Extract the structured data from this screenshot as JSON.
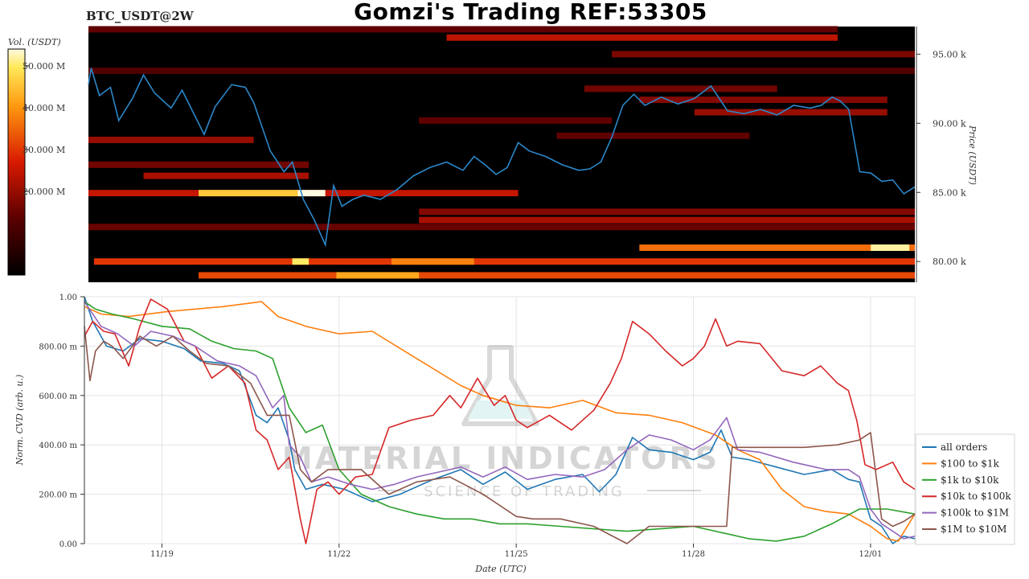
{
  "header": {
    "symbol": "BTC_USDT@2W",
    "title": "Gomzi's Trading REF:53305"
  },
  "watermark": {
    "brand": "MATERIAL INDICATORS",
    "tagline": "SCIENCE OF TRADING"
  },
  "colors": {
    "heatmap_bg": "#000000",
    "price_line": "#2b87c8",
    "grid": "#e4e4e4"
  },
  "chart_data": [
    {
      "type": "heatmap",
      "title": "",
      "colorbar": {
        "label": "Vol. (USDT)",
        "ticks": [
          "50.000 M",
          "40.000 M",
          "30.000 M",
          "20.000 M"
        ],
        "tick_values": [
          50000000,
          40000000,
          30000000,
          20000000
        ],
        "range": [
          0,
          54000000
        ],
        "colormap": "black-red-orange-yellow-white"
      },
      "yaxis": {
        "label": "Price (USDT)",
        "side": "right",
        "ticks": [
          "95.00 k",
          "90.00 k",
          "85.00 k",
          "80.00 k"
        ],
        "tick_values": [
          95000,
          90000,
          85000,
          80000
        ],
        "range": [
          78500,
          97000
        ]
      },
      "xaxis": {
        "range_days": [
          0,
          15
        ]
      },
      "bands": [
        {
          "price": 84950,
          "from": 0.0,
          "to": 7.8,
          "vol": 25000000
        },
        {
          "price": 84950,
          "from": 2.0,
          "to": 3.8,
          "vol": 46000000
        },
        {
          "price": 84950,
          "from": 3.8,
          "to": 4.3,
          "vol": 54000000
        },
        {
          "price": 80000,
          "from": 0.1,
          "to": 15.0,
          "vol": 30000000
        },
        {
          "price": 80000,
          "from": 3.7,
          "to": 4.0,
          "vol": 50000000
        },
        {
          "price": 80000,
          "from": 5.5,
          "to": 7.0,
          "vol": 38000000
        },
        {
          "price": 79000,
          "from": 2.0,
          "to": 15.0,
          "vol": 32000000
        },
        {
          "price": 79000,
          "from": 4.5,
          "to": 6.0,
          "vol": 42000000
        },
        {
          "price": 81000,
          "from": 10.0,
          "to": 15.0,
          "vol": 36000000
        },
        {
          "price": 81000,
          "from": 14.2,
          "to": 14.9,
          "vol": 52000000
        },
        {
          "price": 83000,
          "from": 6.0,
          "to": 15.0,
          "vol": 22000000
        },
        {
          "price": 83600,
          "from": 6.0,
          "to": 15.0,
          "vol": 18000000
        },
        {
          "price": 82500,
          "from": 0.0,
          "to": 15.0,
          "vol": 15000000
        },
        {
          "price": 96200,
          "from": 6.5,
          "to": 13.6,
          "vol": 24000000
        },
        {
          "price": 96800,
          "from": 0.0,
          "to": 13.6,
          "vol": 14000000
        },
        {
          "price": 95000,
          "from": 9.5,
          "to": 15.0,
          "vol": 17000000
        },
        {
          "price": 93800,
          "from": 0.0,
          "to": 15.0,
          "vol": 12000000
        },
        {
          "price": 88800,
          "from": 0.0,
          "to": 3.0,
          "vol": 20000000
        },
        {
          "price": 87000,
          "from": 0.0,
          "to": 4.0,
          "vol": 16000000
        },
        {
          "price": 86200,
          "from": 1.0,
          "to": 4.0,
          "vol": 22000000
        },
        {
          "price": 91700,
          "from": 10.0,
          "to": 14.5,
          "vol": 18000000
        },
        {
          "price": 90800,
          "from": 11.0,
          "to": 14.5,
          "vol": 20000000
        },
        {
          "price": 90200,
          "from": 6.0,
          "to": 9.5,
          "vol": 14000000
        },
        {
          "price": 89100,
          "from": 8.5,
          "to": 12.0,
          "vol": 14000000
        },
        {
          "price": 92500,
          "from": 9.0,
          "to": 12.5,
          "vol": 16000000
        }
      ],
      "price_series": {
        "x_days": [
          0.0,
          0.05,
          0.2,
          0.4,
          0.55,
          0.8,
          1.0,
          1.2,
          1.5,
          1.7,
          1.9,
          2.1,
          2.3,
          2.6,
          2.85,
          3.0,
          3.3,
          3.55,
          3.7,
          3.9,
          4.1,
          4.3,
          4.45,
          4.6,
          4.8,
          5.0,
          5.3,
          5.6,
          5.9,
          6.2,
          6.5,
          6.8,
          7.0,
          7.2,
          7.4,
          7.6,
          7.8,
          8.0,
          8.3,
          8.6,
          8.9,
          9.1,
          9.3,
          9.5,
          9.7,
          9.9,
          10.1,
          10.4,
          10.7,
          11.0,
          11.3,
          11.6,
          11.9,
          12.2,
          12.5,
          12.8,
          13.1,
          13.3,
          13.5,
          13.65,
          13.8,
          14.0,
          14.2,
          14.4,
          14.6,
          14.8,
          15.0
        ],
        "y_price": [
          92800,
          94000,
          92000,
          92600,
          90200,
          91800,
          93500,
          92200,
          91100,
          92400,
          90800,
          89200,
          91200,
          92800,
          92600,
          91500,
          88000,
          86500,
          87200,
          84500,
          83000,
          81200,
          85500,
          84000,
          84500,
          84800,
          84500,
          85200,
          86200,
          86800,
          87200,
          86600,
          87600,
          87000,
          86300,
          86800,
          88600,
          88000,
          87600,
          87000,
          86600,
          86700,
          87200,
          89000,
          91300,
          92100,
          91300,
          91900,
          91400,
          91800,
          92700,
          90900,
          90700,
          91000,
          90600,
          91300,
          91100,
          91300,
          91900,
          91600,
          91000,
          86500,
          86400,
          85800,
          85900,
          84900,
          85400
        ]
      }
    },
    {
      "type": "line",
      "title": "",
      "xlabel": "Date (UTC)",
      "ylabel": "Norm. CVD (arb. u.)",
      "ylim": [
        0,
        1
      ],
      "xlim_days": [
        0,
        15
      ],
      "yticks": [
        "0.00",
        "200.00 m",
        "400.00 m",
        "600.00 m",
        "800.00 m",
        "1.00"
      ],
      "ytick_values": [
        0,
        0.2,
        0.4,
        0.6,
        0.8,
        1.0
      ],
      "xticks": [
        "11/19",
        "11/22",
        "11/25",
        "11/28",
        "12/01"
      ],
      "xtick_days": [
        1.4,
        4.6,
        7.8,
        11.0,
        14.2
      ],
      "legend": {
        "position": "right"
      },
      "series": [
        {
          "name": "all orders",
          "color": "#1f77b4",
          "x": [
            0,
            0.15,
            0.4,
            0.7,
            1.0,
            1.4,
            1.8,
            2.1,
            2.5,
            2.8,
            3.1,
            3.3,
            3.5,
            3.7,
            3.8,
            4.0,
            4.3,
            4.7,
            5.2,
            5.7,
            6.3,
            6.8,
            7.2,
            7.6,
            8.0,
            8.5,
            9.0,
            9.3,
            9.6,
            9.9,
            10.2,
            10.6,
            11.0,
            11.3,
            11.5,
            11.7,
            12.0,
            12.5,
            13.0,
            13.5,
            13.8,
            14.0,
            14.2,
            14.4,
            14.6,
            14.8,
            15.0
          ],
          "y": [
            1.0,
            0.9,
            0.8,
            0.78,
            0.83,
            0.82,
            0.79,
            0.74,
            0.73,
            0.7,
            0.52,
            0.49,
            0.55,
            0.42,
            0.3,
            0.22,
            0.24,
            0.22,
            0.17,
            0.2,
            0.26,
            0.3,
            0.24,
            0.29,
            0.22,
            0.26,
            0.28,
            0.21,
            0.28,
            0.43,
            0.38,
            0.37,
            0.34,
            0.37,
            0.46,
            0.35,
            0.34,
            0.31,
            0.28,
            0.3,
            0.26,
            0.25,
            0.1,
            0.07,
            0.0,
            0.03,
            0.02
          ]
        },
        {
          "name": "$100 to $1k",
          "color": "#ff7f0e",
          "x": [
            0,
            0.3,
            0.8,
            1.5,
            2.5,
            3.2,
            3.5,
            4.0,
            4.6,
            5.2,
            6.0,
            6.8,
            7.2,
            7.8,
            8.4,
            9.0,
            9.6,
            10.2,
            10.8,
            11.4,
            11.8,
            12.2,
            12.6,
            13.0,
            13.4,
            13.8,
            14.2,
            14.5,
            14.7,
            15.0
          ],
          "y": [
            0.96,
            0.93,
            0.92,
            0.94,
            0.96,
            0.98,
            0.92,
            0.88,
            0.85,
            0.86,
            0.75,
            0.64,
            0.6,
            0.56,
            0.55,
            0.58,
            0.53,
            0.52,
            0.49,
            0.44,
            0.38,
            0.34,
            0.22,
            0.15,
            0.13,
            0.12,
            0.07,
            0.02,
            0.01,
            0.12
          ]
        },
        {
          "name": "$1k to $10k",
          "color": "#2ca02c",
          "x": [
            0,
            0.2,
            0.5,
            0.9,
            1.4,
            1.9,
            2.3,
            2.7,
            3.1,
            3.4,
            3.7,
            4.0,
            4.3,
            4.6,
            5.0,
            5.5,
            6.0,
            6.5,
            7.0,
            7.5,
            8.0,
            8.6,
            9.2,
            9.8,
            10.4,
            11.0,
            11.6,
            12.0,
            12.5,
            13.0,
            13.5,
            14.0,
            14.5,
            15.0
          ],
          "y": [
            0.98,
            0.95,
            0.93,
            0.91,
            0.88,
            0.87,
            0.82,
            0.79,
            0.78,
            0.75,
            0.55,
            0.45,
            0.48,
            0.3,
            0.2,
            0.15,
            0.12,
            0.1,
            0.1,
            0.08,
            0.08,
            0.07,
            0.06,
            0.05,
            0.06,
            0.07,
            0.04,
            0.02,
            0.01,
            0.03,
            0.08,
            0.14,
            0.14,
            0.12
          ]
        },
        {
          "name": "$10k to $100k",
          "color": "#d62728",
          "x": [
            0,
            0.15,
            0.35,
            0.55,
            0.8,
            1.0,
            1.2,
            1.5,
            1.8,
            2.0,
            2.3,
            2.6,
            2.9,
            3.1,
            3.3,
            3.5,
            3.7,
            3.9,
            4.0,
            4.2,
            4.4,
            4.6,
            4.9,
            5.2,
            5.5,
            5.9,
            6.3,
            6.6,
            6.8,
            7.1,
            7.4,
            7.6,
            7.8,
            8.0,
            8.4,
            8.8,
            9.2,
            9.5,
            9.7,
            9.9,
            10.2,
            10.5,
            10.8,
            11.0,
            11.2,
            11.4,
            11.6,
            11.8,
            12.2,
            12.6,
            13.0,
            13.3,
            13.6,
            13.8,
            13.95,
            14.1,
            14.3,
            14.6,
            14.8,
            15.0
          ],
          "y": [
            0.84,
            0.9,
            0.86,
            0.85,
            0.72,
            0.88,
            0.99,
            0.95,
            0.82,
            0.8,
            0.67,
            0.72,
            0.65,
            0.46,
            0.42,
            0.3,
            0.35,
            0.1,
            0.0,
            0.22,
            0.25,
            0.2,
            0.27,
            0.28,
            0.47,
            0.5,
            0.52,
            0.6,
            0.55,
            0.67,
            0.56,
            0.6,
            0.5,
            0.47,
            0.52,
            0.46,
            0.54,
            0.65,
            0.75,
            0.9,
            0.85,
            0.78,
            0.72,
            0.75,
            0.8,
            0.91,
            0.8,
            0.82,
            0.81,
            0.7,
            0.68,
            0.72,
            0.65,
            0.62,
            0.5,
            0.32,
            0.3,
            0.33,
            0.25,
            0.22
          ]
        },
        {
          "name": "$100k to $1M",
          "color": "#9467bd",
          "x": [
            0,
            0.3,
            0.6,
            0.9,
            1.2,
            1.6,
            2.0,
            2.4,
            2.8,
            3.1,
            3.4,
            3.6,
            3.7,
            3.9,
            4.1,
            4.4,
            4.8,
            5.2,
            5.6,
            6.0,
            6.4,
            6.8,
            7.2,
            7.6,
            8.0,
            8.5,
            9.0,
            9.4,
            9.8,
            10.2,
            10.6,
            11.0,
            11.3,
            11.6,
            11.8,
            12.2,
            12.8,
            13.4,
            13.8,
            14.0,
            14.2,
            14.4,
            14.6,
            14.8,
            15.0
          ],
          "y": [
            0.98,
            0.88,
            0.85,
            0.8,
            0.86,
            0.84,
            0.8,
            0.74,
            0.72,
            0.68,
            0.55,
            0.6,
            0.4,
            0.35,
            0.25,
            0.27,
            0.24,
            0.22,
            0.24,
            0.27,
            0.29,
            0.31,
            0.27,
            0.31,
            0.26,
            0.28,
            0.27,
            0.3,
            0.38,
            0.44,
            0.42,
            0.38,
            0.42,
            0.51,
            0.38,
            0.37,
            0.33,
            0.3,
            0.3,
            0.27,
            0.14,
            0.08,
            0.05,
            0.02,
            0.03
          ]
        },
        {
          "name": "$1M to $10M",
          "color": "#8c564b",
          "x": [
            0,
            0.1,
            0.2,
            0.35,
            0.5,
            0.7,
            1.0,
            1.3,
            1.6,
            1.9,
            2.2,
            2.6,
            3.0,
            3.3,
            3.7,
            3.9,
            4.1,
            4.4,
            5.0,
            5.5,
            6.0,
            6.6,
            7.2,
            7.6,
            7.8,
            8.1,
            8.6,
            9.2,
            9.8,
            10.2,
            10.6,
            11.2,
            11.6,
            11.7,
            12.4,
            13.0,
            13.6,
            14.0,
            14.2,
            14.4,
            14.6,
            14.8,
            15.0
          ],
          "y": [
            0.88,
            0.66,
            0.78,
            0.82,
            0.8,
            0.75,
            0.84,
            0.8,
            0.84,
            0.78,
            0.73,
            0.72,
            0.65,
            0.52,
            0.52,
            0.3,
            0.25,
            0.3,
            0.3,
            0.2,
            0.25,
            0.27,
            0.2,
            0.14,
            0.11,
            0.1,
            0.1,
            0.07,
            0.0,
            0.07,
            0.07,
            0.07,
            0.07,
            0.39,
            0.39,
            0.39,
            0.4,
            0.42,
            0.45,
            0.1,
            0.07,
            0.09,
            0.12
          ]
        }
      ]
    }
  ]
}
